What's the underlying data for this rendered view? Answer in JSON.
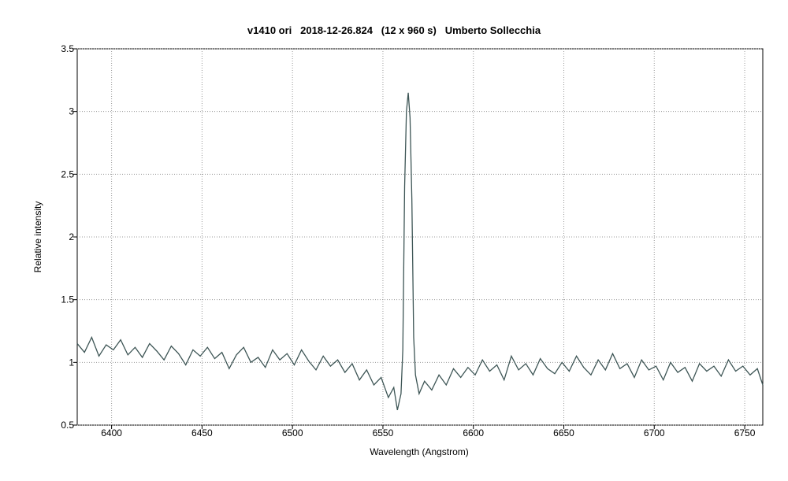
{
  "chart_data": {
    "type": "line",
    "title": "v1410 ori   2018-12-26.824   (12 x 960 s)   Umberto Sollecchia",
    "x_label": "Wavelength (Angstrom)",
    "y_label": "Relative intensity",
    "xlim": [
      6381,
      6760
    ],
    "ylim": [
      0.5,
      3.5
    ],
    "xticks": [
      6400,
      6450,
      6500,
      6550,
      6600,
      6650,
      6700,
      6750
    ],
    "yticks": [
      0.5,
      1,
      1.5,
      2,
      2.5,
      3,
      3.5
    ],
    "grid": true,
    "x": [
      6381,
      6385,
      6389,
      6393,
      6397,
      6401,
      6405,
      6409,
      6413,
      6417,
      6421,
      6425,
      6429,
      6433,
      6437,
      6441,
      6445,
      6449,
      6453,
      6457,
      6461,
      6465,
      6469,
      6473,
      6477,
      6481,
      6485,
      6489,
      6493,
      6497,
      6501,
      6505,
      6509,
      6513,
      6517,
      6521,
      6525,
      6529,
      6533,
      6537,
      6541,
      6545,
      6549,
      6553,
      6556,
      6558,
      6560,
      6561,
      6562,
      6563,
      6564,
      6565,
      6566,
      6567,
      6568,
      6570,
      6573,
      6577,
      6581,
      6585,
      6589,
      6593,
      6597,
      6601,
      6605,
      6609,
      6613,
      6617,
      6621,
      6625,
      6629,
      6633,
      6637,
      6641,
      6645,
      6649,
      6653,
      6657,
      6661,
      6665,
      6669,
      6673,
      6677,
      6681,
      6685,
      6689,
      6693,
      6697,
      6701,
      6705,
      6709,
      6713,
      6717,
      6721,
      6725,
      6729,
      6733,
      6737,
      6741,
      6745,
      6749,
      6753,
      6757,
      6760
    ],
    "series": [
      {
        "color": "#3d5555",
        "values": [
          1.15,
          1.08,
          1.2,
          1.05,
          1.14,
          1.1,
          1.18,
          1.06,
          1.12,
          1.04,
          1.15,
          1.09,
          1.02,
          1.13,
          1.07,
          0.98,
          1.1,
          1.05,
          1.12,
          1.03,
          1.08,
          0.95,
          1.06,
          1.12,
          1.0,
          1.04,
          0.96,
          1.1,
          1.02,
          1.07,
          0.98,
          1.1,
          1.01,
          0.94,
          1.05,
          0.97,
          1.02,
          0.92,
          0.99,
          0.86,
          0.94,
          0.82,
          0.88,
          0.72,
          0.8,
          0.62,
          0.75,
          1.1,
          2.4,
          3.0,
          3.15,
          2.95,
          2.3,
          1.2,
          0.9,
          0.75,
          0.85,
          0.78,
          0.9,
          0.82,
          0.95,
          0.88,
          0.96,
          0.9,
          1.02,
          0.93,
          0.98,
          0.86,
          1.05,
          0.94,
          0.99,
          0.9,
          1.03,
          0.95,
          0.91,
          1.0,
          0.93,
          1.05,
          0.96,
          0.9,
          1.02,
          0.94,
          1.07,
          0.95,
          0.99,
          0.88,
          1.02,
          0.94,
          0.97,
          0.86,
          1.0,
          0.92,
          0.96,
          0.85,
          0.99,
          0.93,
          0.97,
          0.89,
          1.02,
          0.93,
          0.97,
          0.9,
          0.95,
          0.82
        ]
      }
    ]
  }
}
